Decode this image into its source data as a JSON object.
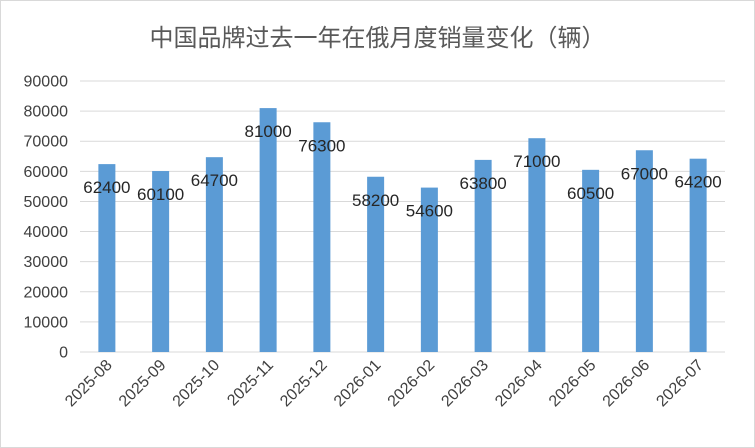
{
  "chart_data": {
    "type": "bar",
    "title": "中国品牌过去一年在俄月度销量变化（辆）",
    "categories": [
      "2025-08",
      "2025-09",
      "2025-10",
      "2025-11",
      "2025-12",
      "2026-01",
      "2026-02",
      "2026-03",
      "2026-04",
      "2026-05",
      "2026-06",
      "2026-07"
    ],
    "values": [
      62400,
      60100,
      64700,
      81000,
      76300,
      58200,
      54600,
      63800,
      71000,
      60500,
      67000,
      64200
    ],
    "ylim": [
      0,
      90000
    ],
    "yticks": [
      0,
      10000,
      20000,
      30000,
      40000,
      50000,
      60000,
      70000,
      80000,
      90000
    ],
    "grid": true,
    "legend": "none",
    "bar_color": "#5b9bd5",
    "grid_color": "#d9d9d9"
  }
}
